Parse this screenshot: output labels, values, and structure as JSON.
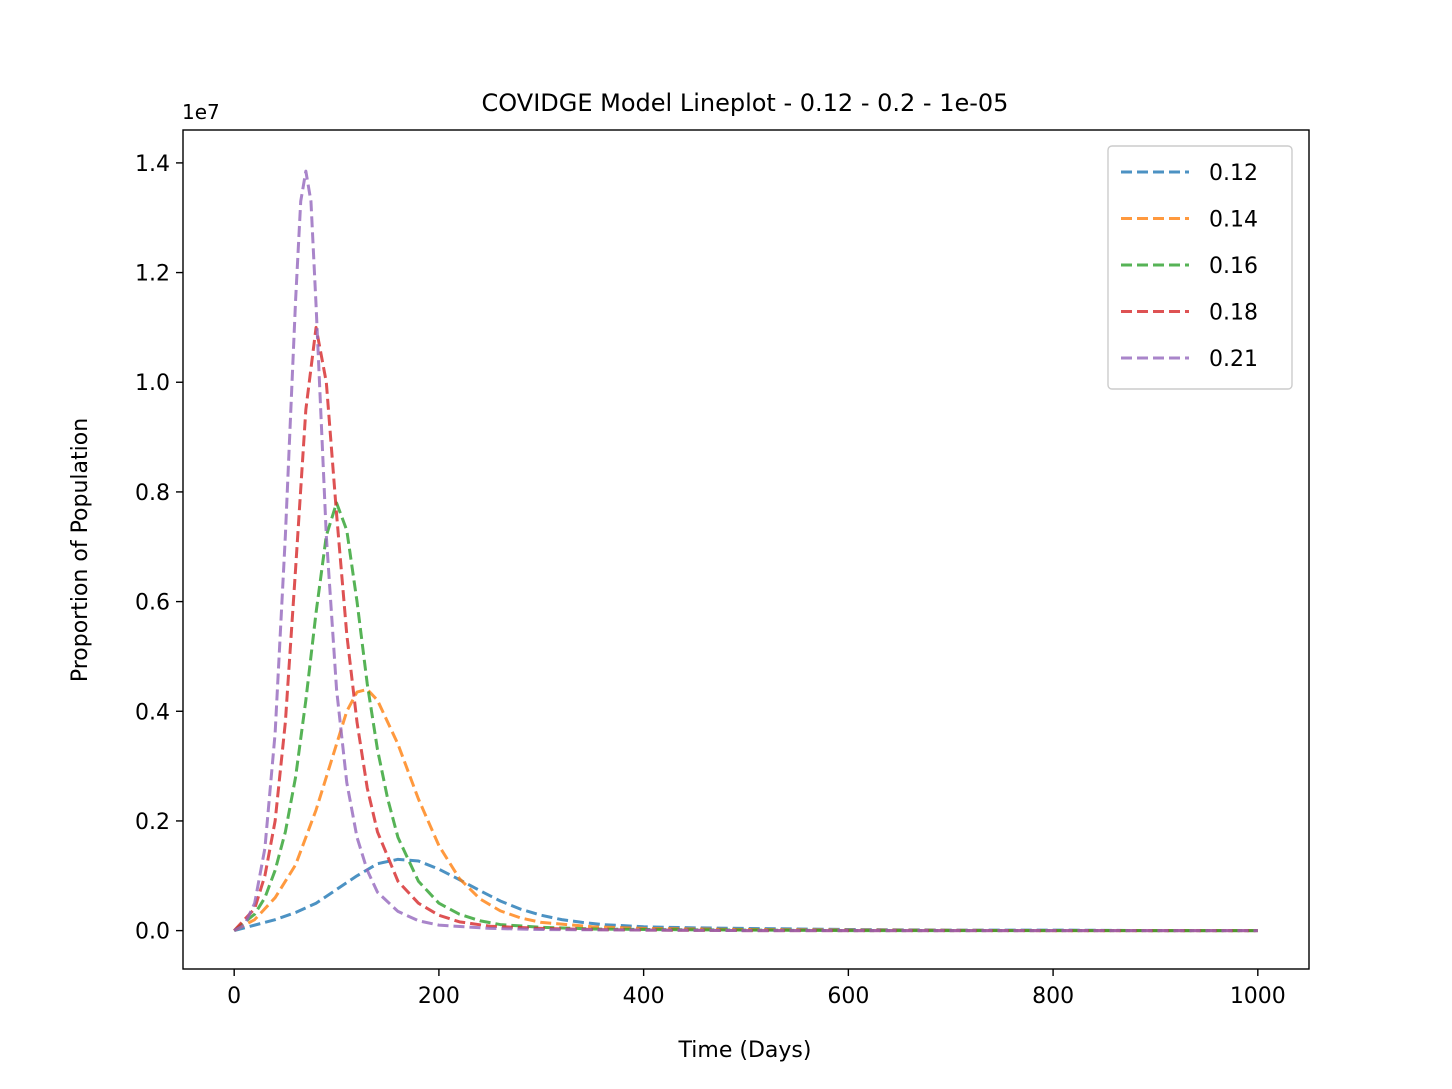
{
  "chart_data": {
    "type": "line",
    "title": "COVIDGE Model Lineplot - 0.12 - 0.2 - 1e-05",
    "xlabel": "Time (Days)",
    "ylabel": "Proportion of Population",
    "y_multiplier": "1e7",
    "xlim": [
      -50,
      1050
    ],
    "ylim": [
      -0.07,
      1.46
    ],
    "x_ticks": [
      0,
      200,
      400,
      600,
      800,
      1000
    ],
    "x_tick_labels": [
      "0",
      "200",
      "400",
      "600",
      "800",
      "1000"
    ],
    "y_ticks": [
      0.0,
      0.2,
      0.4,
      0.6,
      0.8,
      1.0,
      1.2,
      1.4
    ],
    "y_tick_labels": [
      "0.0",
      "0.2",
      "0.4",
      "0.6",
      "0.8",
      "1.0",
      "1.2",
      "1.4"
    ],
    "grid": false,
    "legend_position": "top-right",
    "line_style": "dashed",
    "series": [
      {
        "name": "0.12",
        "color": "#1f77b4",
        "x": [
          0,
          20,
          40,
          60,
          80,
          100,
          120,
          140,
          160,
          180,
          200,
          220,
          240,
          260,
          280,
          300,
          320,
          340,
          360,
          380,
          400,
          450,
          500,
          600,
          700,
          800,
          900,
          1000
        ],
        "y": [
          0.0,
          0.01,
          0.02,
          0.033,
          0.05,
          0.075,
          0.1,
          0.122,
          0.13,
          0.127,
          0.112,
          0.093,
          0.073,
          0.054,
          0.039,
          0.028,
          0.02,
          0.015,
          0.011,
          0.009,
          0.007,
          0.005,
          0.004,
          0.002,
          0.001,
          0.001,
          0.0,
          0.0
        ]
      },
      {
        "name": "0.14",
        "color": "#ff7f0e",
        "x": [
          0,
          20,
          40,
          60,
          80,
          100,
          110,
          120,
          130,
          140,
          160,
          180,
          200,
          220,
          240,
          260,
          280,
          300,
          350,
          400,
          500,
          600,
          800,
          1000
        ],
        "y": [
          0.0,
          0.02,
          0.06,
          0.12,
          0.22,
          0.34,
          0.4,
          0.435,
          0.44,
          0.42,
          0.34,
          0.24,
          0.155,
          0.095,
          0.058,
          0.036,
          0.023,
          0.015,
          0.007,
          0.004,
          0.002,
          0.001,
          0.0,
          0.0
        ]
      },
      {
        "name": "0.16",
        "color": "#2ca02c",
        "x": [
          0,
          20,
          30,
          40,
          50,
          60,
          70,
          80,
          90,
          100,
          110,
          120,
          130,
          140,
          150,
          160,
          180,
          200,
          220,
          240,
          260,
          300,
          350,
          400,
          500,
          600,
          800,
          1000
        ],
        "y": [
          0.0,
          0.03,
          0.06,
          0.11,
          0.18,
          0.28,
          0.42,
          0.58,
          0.72,
          0.78,
          0.73,
          0.6,
          0.45,
          0.33,
          0.24,
          0.17,
          0.09,
          0.05,
          0.03,
          0.018,
          0.011,
          0.006,
          0.003,
          0.002,
          0.001,
          0.0,
          0.0,
          0.0
        ]
      },
      {
        "name": "0.18",
        "color": "#d62728",
        "x": [
          0,
          20,
          30,
          40,
          50,
          60,
          70,
          80,
          90,
          100,
          110,
          120,
          130,
          140,
          160,
          180,
          200,
          220,
          250,
          300,
          350,
          400,
          500,
          600,
          800,
          1000
        ],
        "y": [
          0.0,
          0.04,
          0.1,
          0.2,
          0.38,
          0.66,
          0.95,
          1.1,
          1.0,
          0.76,
          0.54,
          0.38,
          0.26,
          0.18,
          0.09,
          0.05,
          0.028,
          0.016,
          0.008,
          0.004,
          0.002,
          0.001,
          0.0,
          0.0,
          0.0,
          0.0
        ]
      },
      {
        "name": "0.21",
        "color": "#9467bd",
        "x": [
          0,
          10,
          20,
          30,
          40,
          50,
          60,
          65,
          70,
          75,
          80,
          90,
          100,
          110,
          120,
          130,
          140,
          160,
          180,
          200,
          250,
          300,
          400,
          500,
          600,
          800,
          1000
        ],
        "y": [
          0.0,
          0.01,
          0.05,
          0.15,
          0.36,
          0.72,
          1.15,
          1.33,
          1.385,
          1.33,
          1.14,
          0.72,
          0.44,
          0.27,
          0.17,
          0.11,
          0.07,
          0.035,
          0.018,
          0.01,
          0.004,
          0.002,
          0.001,
          0.0,
          0.0,
          0.0,
          0.0
        ]
      }
    ]
  }
}
